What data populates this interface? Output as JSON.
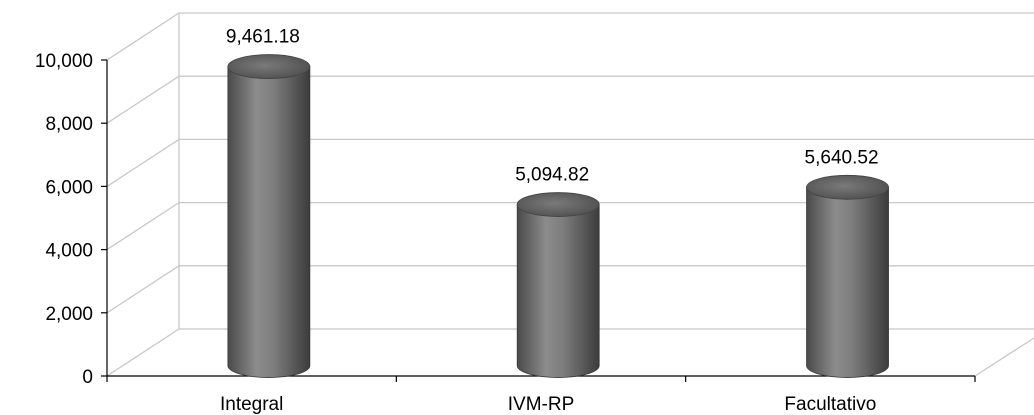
{
  "chart_data": {
    "type": "bar",
    "style": "3d-cylinder",
    "categories": [
      "Integral",
      "IVM-RP",
      "Facultativo"
    ],
    "values": [
      9461.18,
      5094.82,
      5640.52
    ],
    "data_labels": [
      "9,461.18",
      "5,094.82",
      "5,640.52"
    ],
    "y_ticks": [
      0,
      2000,
      4000,
      6000,
      8000,
      10000
    ],
    "y_tick_labels": [
      "0",
      "2,000",
      "4,000",
      "6,000",
      "8,000",
      "10,000"
    ],
    "ylim": [
      0,
      10000
    ],
    "title": "",
    "xlabel": "",
    "ylabel": "",
    "grid": true,
    "legend": "none",
    "colors": {
      "bar": "#7a7a7a",
      "grid": "#c8c8c8",
      "axis": "#000000"
    }
  }
}
